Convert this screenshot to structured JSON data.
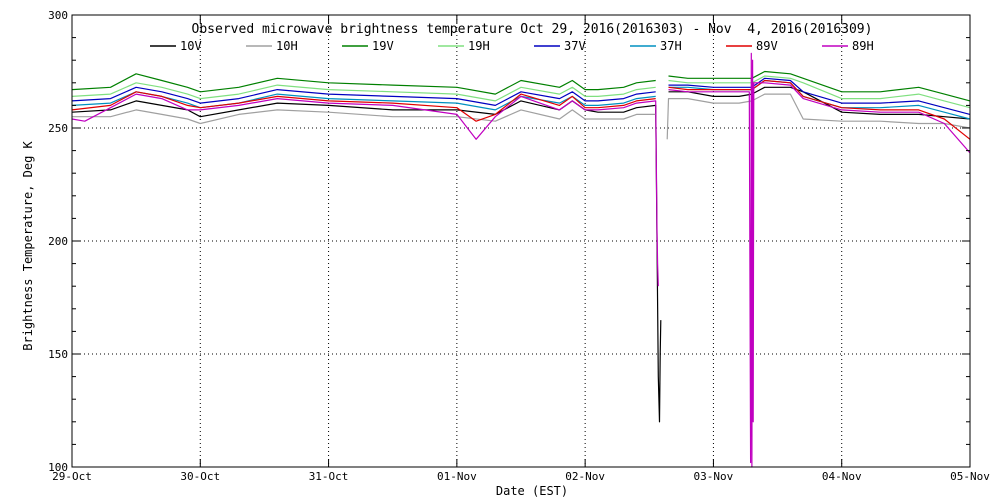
{
  "chart_data": {
    "type": "line",
    "title": "Observed microwave brightness temperature Oct 29, 2016(2016303) - Nov  4, 2016(2016309)",
    "xlabel": "Date (EST)",
    "ylabel": "Brightness Temperature, Deg K",
    "xlim": [
      0,
      7
    ],
    "ylim": [
      100,
      300
    ],
    "x_unit": "days since 29-Oct 2016 00:00 EST",
    "x_ticks": [
      {
        "v": 0,
        "label": "29-Oct"
      },
      {
        "v": 1,
        "label": "30-Oct"
      },
      {
        "v": 2,
        "label": "31-Oct"
      },
      {
        "v": 3,
        "label": "01-Nov"
      },
      {
        "v": 4,
        "label": "02-Nov"
      },
      {
        "v": 5,
        "label": "03-Nov"
      },
      {
        "v": 6,
        "label": "04-Nov"
      },
      {
        "v": 7,
        "label": "05-Nov"
      }
    ],
    "y_ticks": [
      {
        "v": 100,
        "label": "100"
      },
      {
        "v": 150,
        "label": "150"
      },
      {
        "v": 200,
        "label": "200"
      },
      {
        "v": 250,
        "label": "250"
      },
      {
        "v": 300,
        "label": "300"
      }
    ],
    "grid": true,
    "legend_position": "top",
    "series": [
      {
        "name": "10V",
        "color": "#000000",
        "points": [
          [
            0,
            257
          ],
          [
            0.3,
            258
          ],
          [
            0.5,
            262
          ],
          [
            0.7,
            260
          ],
          [
            0.9,
            258
          ],
          [
            1.0,
            255
          ],
          [
            1.3,
            258
          ],
          [
            1.6,
            261
          ],
          [
            2.0,
            260
          ],
          [
            2.5,
            258
          ],
          [
            3.0,
            258
          ],
          [
            3.3,
            256
          ],
          [
            3.5,
            262
          ],
          [
            3.8,
            258
          ],
          [
            3.9,
            262
          ],
          [
            4.0,
            258
          ],
          [
            4.1,
            257
          ],
          [
            4.3,
            257
          ],
          [
            4.4,
            259
          ],
          [
            4.55,
            260
          ],
          [
            4.57,
            140
          ],
          [
            4.58,
            120
          ],
          [
            4.585,
            150
          ],
          [
            4.59,
            165
          ],
          [
            4.6,
            null
          ],
          [
            4.65,
            266
          ],
          [
            4.8,
            266
          ],
          [
            5.0,
            264
          ],
          [
            5.2,
            264
          ],
          [
            5.3,
            265
          ],
          [
            5.4,
            268
          ],
          [
            5.6,
            268
          ],
          [
            5.7,
            266
          ],
          [
            6.0,
            257
          ],
          [
            6.3,
            256
          ],
          [
            6.6,
            256
          ],
          [
            6.8,
            255
          ],
          [
            7.0,
            254
          ]
        ]
      },
      {
        "name": "10H",
        "color": "#a0a0a0",
        "points": [
          [
            0,
            255
          ],
          [
            0.3,
            255
          ],
          [
            0.5,
            258
          ],
          [
            0.7,
            256
          ],
          [
            0.9,
            254
          ],
          [
            1.0,
            252
          ],
          [
            1.3,
            256
          ],
          [
            1.6,
            258
          ],
          [
            2.0,
            257
          ],
          [
            2.5,
            255
          ],
          [
            3.0,
            255
          ],
          [
            3.3,
            253
          ],
          [
            3.5,
            258
          ],
          [
            3.8,
            254
          ],
          [
            3.9,
            258
          ],
          [
            4.0,
            254
          ],
          [
            4.1,
            254
          ],
          [
            4.3,
            254
          ],
          [
            4.4,
            256
          ],
          [
            4.55,
            256
          ],
          [
            4.6,
            null
          ],
          [
            4.64,
            245
          ],
          [
            4.65,
            263
          ],
          [
            4.8,
            263
          ],
          [
            5.0,
            261
          ],
          [
            5.2,
            261
          ],
          [
            5.3,
            262
          ],
          [
            5.4,
            265
          ],
          [
            5.6,
            265
          ],
          [
            5.7,
            254
          ],
          [
            6.0,
            253
          ],
          [
            6.3,
            253
          ],
          [
            6.6,
            252
          ],
          [
            6.8,
            252
          ],
          [
            7.0,
            250
          ]
        ]
      },
      {
        "name": "19V",
        "color": "#008000",
        "points": [
          [
            0,
            267
          ],
          [
            0.3,
            268
          ],
          [
            0.5,
            274
          ],
          [
            0.7,
            271
          ],
          [
            0.9,
            268
          ],
          [
            1.0,
            266
          ],
          [
            1.3,
            268
          ],
          [
            1.6,
            272
          ],
          [
            2.0,
            270
          ],
          [
            2.5,
            269
          ],
          [
            3.0,
            268
          ],
          [
            3.3,
            265
          ],
          [
            3.5,
            271
          ],
          [
            3.8,
            268
          ],
          [
            3.9,
            271
          ],
          [
            4.0,
            267
          ],
          [
            4.1,
            267
          ],
          [
            4.3,
            268
          ],
          [
            4.4,
            270
          ],
          [
            4.55,
            271
          ],
          [
            4.6,
            null
          ],
          [
            4.65,
            273
          ],
          [
            4.8,
            272
          ],
          [
            5.0,
            272
          ],
          [
            5.2,
            272
          ],
          [
            5.3,
            272
          ],
          [
            5.4,
            275
          ],
          [
            5.6,
            274
          ],
          [
            5.7,
            272
          ],
          [
            6.0,
            266
          ],
          [
            6.3,
            266
          ],
          [
            6.6,
            268
          ],
          [
            6.8,
            265
          ],
          [
            7.0,
            262
          ]
        ]
      },
      {
        "name": "19H",
        "color": "#80e080",
        "points": [
          [
            0,
            264
          ],
          [
            0.3,
            265
          ],
          [
            0.5,
            270
          ],
          [
            0.7,
            268
          ],
          [
            0.9,
            265
          ],
          [
            1.0,
            263
          ],
          [
            1.3,
            265
          ],
          [
            1.6,
            269
          ],
          [
            2.0,
            267
          ],
          [
            2.5,
            266
          ],
          [
            3.0,
            265
          ],
          [
            3.3,
            262
          ],
          [
            3.5,
            268
          ],
          [
            3.8,
            265
          ],
          [
            3.9,
            268
          ],
          [
            4.0,
            264
          ],
          [
            4.1,
            264
          ],
          [
            4.3,
            265
          ],
          [
            4.4,
            267
          ],
          [
            4.55,
            268
          ],
          [
            4.6,
            null
          ],
          [
            4.65,
            271
          ],
          [
            4.8,
            270
          ],
          [
            5.0,
            270
          ],
          [
            5.2,
            270
          ],
          [
            5.3,
            270
          ],
          [
            5.4,
            273
          ],
          [
            5.6,
            272
          ],
          [
            5.7,
            270
          ],
          [
            6.0,
            263
          ],
          [
            6.3,
            263
          ],
          [
            6.6,
            265
          ],
          [
            6.8,
            262
          ],
          [
            7.0,
            259
          ]
        ]
      },
      {
        "name": "37V",
        "color": "#0000c0",
        "points": [
          [
            0,
            262
          ],
          [
            0.3,
            263
          ],
          [
            0.5,
            268
          ],
          [
            0.7,
            266
          ],
          [
            0.9,
            263
          ],
          [
            1.0,
            261
          ],
          [
            1.3,
            263
          ],
          [
            1.6,
            267
          ],
          [
            2.0,
            265
          ],
          [
            2.5,
            264
          ],
          [
            3.0,
            263
          ],
          [
            3.3,
            260
          ],
          [
            3.5,
            266
          ],
          [
            3.8,
            263
          ],
          [
            3.9,
            266
          ],
          [
            4.0,
            262
          ],
          [
            4.1,
            262
          ],
          [
            4.3,
            263
          ],
          [
            4.4,
            265
          ],
          [
            4.55,
            266
          ],
          [
            4.6,
            null
          ],
          [
            4.65,
            269
          ],
          [
            4.8,
            269
          ],
          [
            5.0,
            268
          ],
          [
            5.2,
            268
          ],
          [
            5.3,
            268
          ],
          [
            5.4,
            272
          ],
          [
            5.6,
            271
          ],
          [
            5.7,
            266
          ],
          [
            6.0,
            261
          ],
          [
            6.3,
            261
          ],
          [
            6.6,
            262
          ],
          [
            6.8,
            259
          ],
          [
            7.0,
            256
          ]
        ]
      },
      {
        "name": "37H",
        "color": "#0090c0",
        "points": [
          [
            0,
            260
          ],
          [
            0.3,
            261
          ],
          [
            0.5,
            266
          ],
          [
            0.7,
            264
          ],
          [
            0.9,
            261
          ],
          [
            1.0,
            259
          ],
          [
            1.3,
            261
          ],
          [
            1.6,
            265
          ],
          [
            2.0,
            263
          ],
          [
            2.5,
            262
          ],
          [
            3.0,
            261
          ],
          [
            3.3,
            258
          ],
          [
            3.5,
            264
          ],
          [
            3.8,
            261
          ],
          [
            3.9,
            264
          ],
          [
            4.0,
            260
          ],
          [
            4.1,
            260
          ],
          [
            4.3,
            261
          ],
          [
            4.4,
            263
          ],
          [
            4.55,
            264
          ],
          [
            4.6,
            null
          ],
          [
            4.65,
            268
          ],
          [
            4.8,
            268
          ],
          [
            5.0,
            267
          ],
          [
            5.2,
            267
          ],
          [
            5.3,
            267
          ],
          [
            5.4,
            271
          ],
          [
            5.6,
            270
          ],
          [
            5.7,
            264
          ],
          [
            6.0,
            259
          ],
          [
            6.3,
            259
          ],
          [
            6.6,
            260
          ],
          [
            6.8,
            257
          ],
          [
            7.0,
            254
          ]
        ]
      },
      {
        "name": "89V",
        "color": "#e00000",
        "points": [
          [
            0,
            258
          ],
          [
            0.3,
            260
          ],
          [
            0.5,
            266
          ],
          [
            0.7,
            264
          ],
          [
            0.9,
            260
          ],
          [
            1.0,
            259
          ],
          [
            1.3,
            261
          ],
          [
            1.6,
            264
          ],
          [
            2.0,
            262
          ],
          [
            2.5,
            261
          ],
          [
            3.0,
            259
          ],
          [
            3.15,
            253
          ],
          [
            3.3,
            256
          ],
          [
            3.5,
            265
          ],
          [
            3.8,
            260
          ],
          [
            3.9,
            264
          ],
          [
            4.0,
            259
          ],
          [
            4.1,
            259
          ],
          [
            4.3,
            260
          ],
          [
            4.4,
            262
          ],
          [
            4.55,
            263
          ],
          [
            4.6,
            null
          ],
          [
            4.65,
            268
          ],
          [
            4.8,
            267
          ],
          [
            5.0,
            267
          ],
          [
            5.2,
            267
          ],
          [
            5.3,
            267
          ],
          [
            5.4,
            271
          ],
          [
            5.6,
            270
          ],
          [
            5.7,
            264
          ],
          [
            6.0,
            259
          ],
          [
            6.3,
            258
          ],
          [
            6.6,
            258
          ],
          [
            6.8,
            254
          ],
          [
            7.0,
            245
          ]
        ]
      },
      {
        "name": "89H",
        "color": "#c000c0",
        "points": [
          [
            0,
            254
          ],
          [
            0.1,
            253
          ],
          [
            0.3,
            259
          ],
          [
            0.5,
            265
          ],
          [
            0.7,
            263
          ],
          [
            0.9,
            258
          ],
          [
            1.0,
            258
          ],
          [
            1.3,
            260
          ],
          [
            1.6,
            263
          ],
          [
            2.0,
            261
          ],
          [
            2.5,
            260
          ],
          [
            3.0,
            256
          ],
          [
            3.15,
            245
          ],
          [
            3.3,
            255
          ],
          [
            3.5,
            264
          ],
          [
            3.8,
            258
          ],
          [
            3.9,
            262
          ],
          [
            4.0,
            258
          ],
          [
            4.1,
            258
          ],
          [
            4.3,
            259
          ],
          [
            4.4,
            261
          ],
          [
            4.55,
            262
          ],
          [
            4.56,
            205
          ],
          [
            4.565,
            190
          ],
          [
            4.57,
            180
          ],
          [
            4.6,
            null
          ],
          [
            4.65,
            267
          ],
          [
            4.8,
            266
          ],
          [
            5.0,
            266
          ],
          [
            5.2,
            266
          ],
          [
            5.28,
            266
          ],
          [
            5.29,
            102
          ],
          [
            5.295,
            283
          ],
          [
            5.3,
            100
          ],
          [
            5.305,
            280
          ],
          [
            5.31,
            120
          ],
          [
            5.315,
            270
          ],
          [
            5.4,
            270
          ],
          [
            5.6,
            269
          ],
          [
            5.7,
            263
          ],
          [
            6.0,
            258
          ],
          [
            6.3,
            257
          ],
          [
            6.6,
            257
          ],
          [
            6.8,
            252
          ],
          [
            7.0,
            239
          ]
        ]
      }
    ]
  }
}
